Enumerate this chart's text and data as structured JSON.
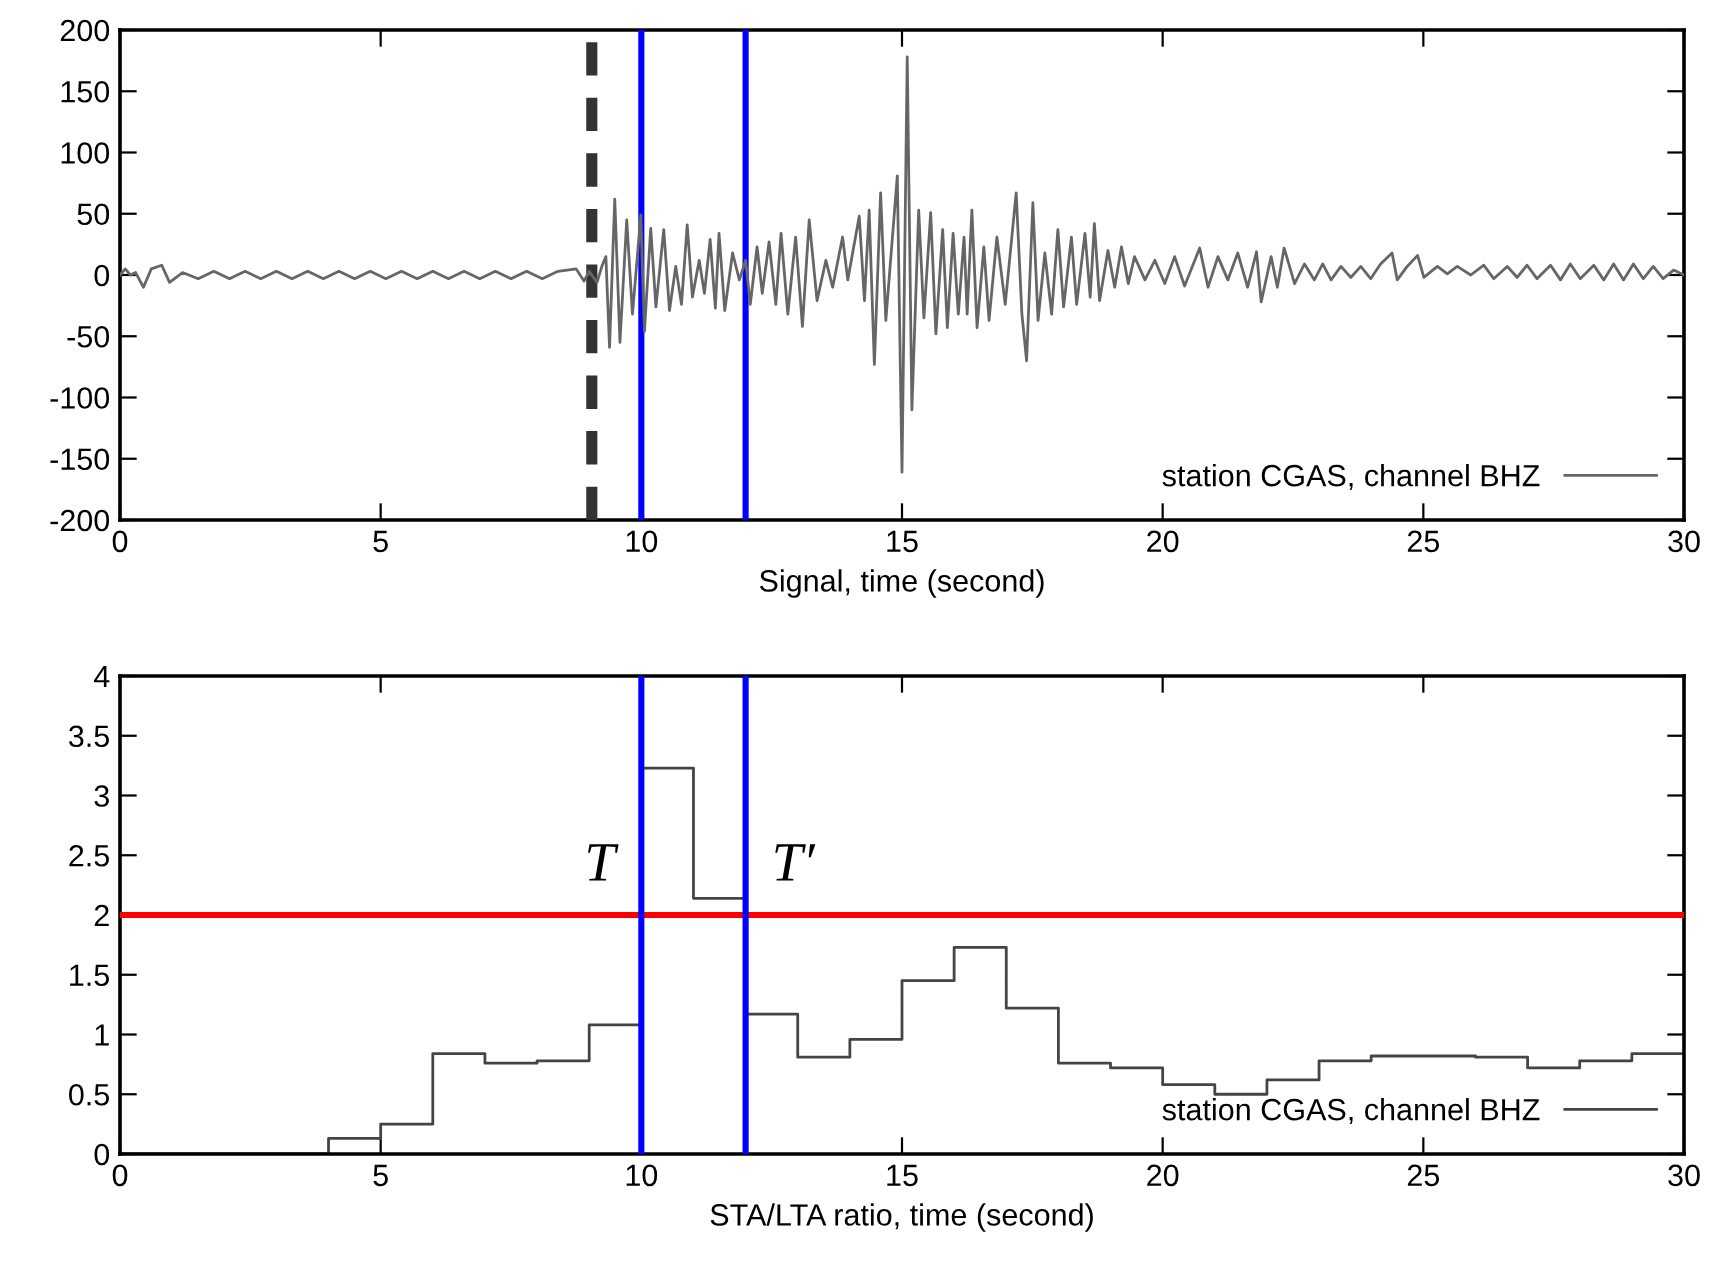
{
  "chart_data": [
    {
      "type": "line",
      "xlabel": "Signal, time (second)",
      "xlim": [
        0,
        30
      ],
      "ylim": [
        -200,
        200
      ],
      "xticks": [
        0,
        5,
        10,
        15,
        20,
        25,
        30
      ],
      "yticks": [
        -200,
        -150,
        -100,
        -50,
        0,
        50,
        100,
        150,
        200
      ],
      "grid": false,
      "legend": "bottom right",
      "series": [
        {
          "name": "station CGAS, channel BHZ",
          "color": "#666666",
          "x": [
            0,
            0.1,
            0.2,
            0.3,
            0.45,
            0.6,
            0.8,
            0.95,
            1.2,
            1.5,
            1.8,
            2.1,
            2.4,
            2.7,
            3.0,
            3.3,
            3.6,
            3.9,
            4.2,
            4.5,
            4.8,
            5.1,
            5.4,
            5.7,
            6.0,
            6.3,
            6.6,
            6.9,
            7.2,
            7.5,
            7.8,
            8.1,
            8.4,
            8.75,
            8.9,
            9.0,
            9.15,
            9.25,
            9.32,
            9.39,
            9.49,
            9.59,
            9.72,
            9.83,
            9.99,
            10.06,
            10.18,
            10.28,
            10.43,
            10.54,
            10.66,
            10.77,
            10.88,
            10.98,
            11.11,
            11.21,
            11.32,
            11.42,
            11.49,
            11.6,
            11.75,
            11.88,
            12.0,
            12.09,
            12.22,
            12.32,
            12.45,
            12.58,
            12.68,
            12.81,
            12.96,
            13.09,
            13.22,
            13.37,
            13.54,
            13.67,
            13.86,
            13.96,
            14.18,
            14.28,
            14.37,
            14.47,
            14.59,
            14.69,
            14.91,
            15.0,
            15.1,
            15.19,
            15.32,
            15.42,
            15.55,
            15.65,
            15.78,
            15.87,
            15.98,
            16.08,
            16.19,
            16.25,
            16.34,
            16.44,
            16.57,
            16.67,
            16.82,
            16.98,
            17.19,
            17.3,
            17.39,
            17.51,
            17.61,
            17.74,
            17.87,
            17.99,
            18.1,
            18.25,
            18.35,
            18.51,
            18.61,
            18.69,
            18.79,
            18.95,
            19.08,
            19.21,
            19.34,
            19.46,
            19.66,
            19.85,
            20.04,
            20.23,
            20.42,
            20.71,
            20.87,
            21.06,
            21.25,
            21.44,
            21.63,
            21.8,
            21.89,
            22.08,
            22.2,
            22.33,
            22.53,
            22.72,
            22.91,
            23.07,
            23.23,
            23.42,
            23.61,
            23.8,
            23.99,
            24.18,
            24.4,
            24.5,
            24.69,
            24.89,
            25.01,
            25.27,
            25.46,
            25.65,
            25.91,
            26.16,
            26.35,
            26.61,
            26.8,
            26.99,
            27.18,
            27.44,
            27.63,
            27.82,
            28.01,
            28.27,
            28.46,
            28.65,
            28.84,
            29.03,
            29.22,
            29.41,
            29.6,
            29.8,
            30
          ],
          "values": [
            0,
            5,
            0,
            2,
            -10,
            5,
            8,
            -6,
            2,
            -3,
            3,
            -3,
            3,
            -3,
            3,
            -3,
            3,
            -3,
            3,
            -3,
            3,
            -3,
            3,
            -3,
            3,
            -3,
            3,
            -3,
            3,
            -3,
            3,
            -3,
            3,
            5,
            -5,
            3,
            -6,
            8,
            15,
            -59,
            62,
            -55,
            45,
            -32,
            49,
            -46,
            38,
            -26,
            37,
            -29,
            7,
            -24,
            41,
            -18,
            12,
            -15,
            29,
            -27,
            34,
            -29,
            18,
            -4,
            12,
            -24,
            23,
            -15,
            27,
            -24,
            34,
            -32,
            31,
            -42,
            45,
            -21,
            12,
            -10,
            31,
            -4,
            48,
            -21,
            53,
            -73,
            67,
            -37,
            81,
            -161,
            178,
            -110,
            53,
            -35,
            51,
            -48,
            37,
            -43,
            34,
            -32,
            31,
            -32,
            53,
            -43,
            23,
            -37,
            31,
            -24,
            67,
            -32,
            -70,
            59,
            -37,
            18,
            -32,
            37,
            -26,
            31,
            -24,
            34,
            -18,
            42,
            -21,
            20,
            -10,
            23,
            -7,
            15,
            -4,
            12,
            -7,
            15,
            -9,
            22,
            -10,
            15,
            -4,
            18,
            -10,
            19,
            -22,
            15,
            -10,
            22,
            -7,
            9,
            -4,
            9,
            -4,
            7,
            -2,
            7,
            -3,
            9,
            18,
            -4,
            7,
            16,
            -2,
            7,
            1,
            7,
            0,
            8,
            -3,
            7,
            -2,
            8,
            -3,
            8,
            -4,
            9,
            -3,
            8,
            -4,
            9,
            -4,
            9,
            -3,
            7,
            -3,
            4,
            0
          ]
        }
      ],
      "ref_lines": [
        {
          "axis": "x",
          "value": 9.05,
          "color": "#333333",
          "line_style": "dashed"
        },
        {
          "axis": "x",
          "value": 10,
          "color": "#0000ff",
          "line_style": "solid"
        },
        {
          "axis": "x",
          "value": 12,
          "color": "#0000ff",
          "line_style": "solid"
        }
      ]
    },
    {
      "type": "step",
      "xlabel": "STA/LTA ratio, time (second)",
      "xlim": [
        0,
        30
      ],
      "ylim": [
        0,
        4
      ],
      "xticks": [
        0,
        5,
        10,
        15,
        20,
        25,
        30
      ],
      "yticks": [
        0,
        0.5,
        1,
        1.5,
        2,
        2.5,
        3,
        3.5,
        4
      ],
      "grid": false,
      "legend": "bottom right",
      "series": [
        {
          "name": "station CGAS, channel BHZ",
          "color": "#444444",
          "x": [
            0,
            4,
            5,
            6,
            7,
            8,
            9,
            10,
            11,
            12,
            13,
            14,
            15,
            16,
            17,
            18,
            19,
            20,
            21,
            22,
            23,
            24,
            25,
            26,
            27,
            28,
            29,
            30
          ],
          "values": [
            0,
            0.13,
            0.25,
            0.84,
            0.76,
            0.78,
            1.08,
            3.23,
            2.14,
            1.17,
            0.81,
            0.96,
            1.45,
            1.73,
            1.22,
            0.76,
            0.72,
            0.58,
            0.5,
            0.62,
            0.78,
            0.82,
            0.82,
            0.81,
            0.72,
            0.78,
            0.84,
            0.84
          ]
        }
      ],
      "ref_lines": [
        {
          "axis": "y",
          "value": 2,
          "color": "#ff0000",
          "line_style": "solid"
        },
        {
          "axis": "x",
          "value": 10,
          "color": "#0000ff",
          "line_style": "solid"
        },
        {
          "axis": "x",
          "value": 12,
          "color": "#0000ff",
          "line_style": "solid"
        }
      ],
      "annotations": [
        "T",
        "T′"
      ]
    }
  ]
}
